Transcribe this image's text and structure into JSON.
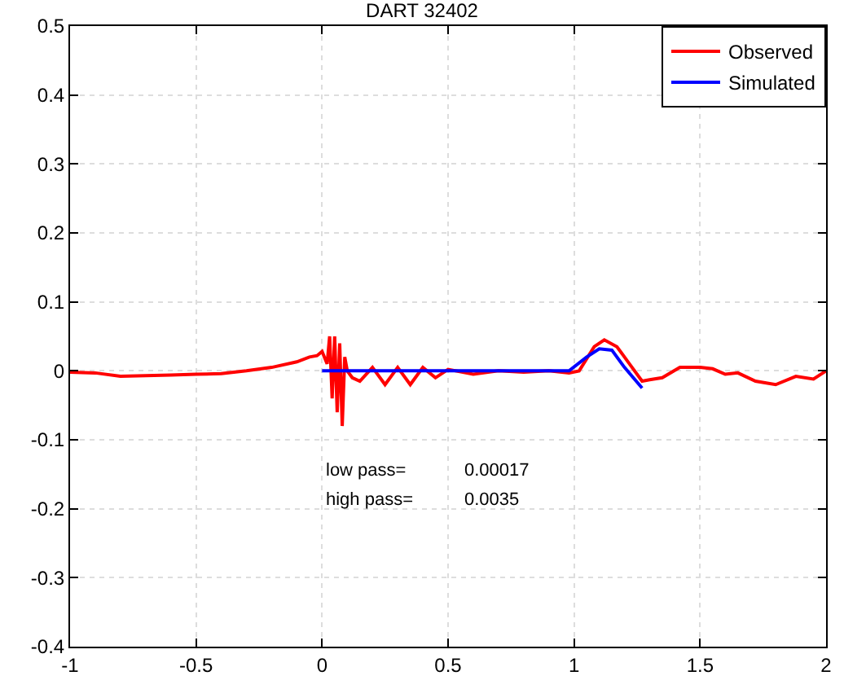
{
  "chart_data": {
    "type": "line",
    "title": "DART 32402",
    "series": [
      {
        "name": "Observed",
        "color": "#ff0000",
        "x": [
          -1,
          -0.9,
          -0.8,
          -0.7,
          -0.6,
          -0.5,
          -0.4,
          -0.3,
          -0.2,
          -0.1,
          -0.05,
          -0.02,
          0,
          0.02,
          0.03,
          0.04,
          0.05,
          0.06,
          0.07,
          0.08,
          0.09,
          0.1,
          0.12,
          0.15,
          0.2,
          0.25,
          0.3,
          0.35,
          0.4,
          0.45,
          0.5,
          0.6,
          0.7,
          0.8,
          0.9,
          0.98,
          1.02,
          1.08,
          1.12,
          1.17,
          1.22,
          1.27,
          1.3,
          1.35,
          1.42,
          1.5,
          1.55,
          1.6,
          1.65,
          1.72,
          1.8,
          1.88,
          1.95,
          2
        ],
        "values": [
          -0.002,
          -0.003,
          -0.008,
          -0.007,
          -0.006,
          -0.005,
          -0.004,
          0.0,
          0.005,
          0.013,
          0.02,
          0.022,
          0.028,
          0.01,
          0.05,
          -0.04,
          0.05,
          -0.06,
          0.04,
          -0.08,
          0.02,
          0.0,
          -0.01,
          -0.015,
          0.005,
          -0.02,
          0.005,
          -0.02,
          0.005,
          -0.01,
          0.002,
          -0.005,
          0.0,
          -0.002,
          0.0,
          -0.003,
          0.0,
          0.035,
          0.045,
          0.035,
          0.01,
          -0.015,
          -0.013,
          -0.01,
          0.005,
          0.005,
          0.003,
          -0.005,
          -0.003,
          -0.015,
          -0.02,
          -0.008,
          -0.012,
          0.0
        ]
      },
      {
        "name": "Simulated",
        "color": "#0000ff",
        "x": [
          0,
          0.5,
          0.98,
          1.05,
          1.1,
          1.15,
          1.2,
          1.27
        ],
        "values": [
          0,
          0,
          0,
          0.02,
          0.032,
          0.03,
          0.005,
          -0.025
        ]
      }
    ],
    "xlim": [
      -1,
      2
    ],
    "xticks": [
      -1,
      -0.5,
      0,
      0.5,
      1,
      1.5,
      2
    ],
    "ylim": [
      -0.4,
      0.5
    ],
    "yticks": [
      -0.4,
      -0.3,
      -0.2,
      -0.1,
      0,
      0.1,
      0.2,
      0.3,
      0.4,
      0.5
    ],
    "grid": true,
    "legend": "top right",
    "marker": "none",
    "line_style": "solid",
    "annotations": [
      "low pass=",
      "0.00017",
      "high pass=",
      "0.0035"
    ]
  }
}
